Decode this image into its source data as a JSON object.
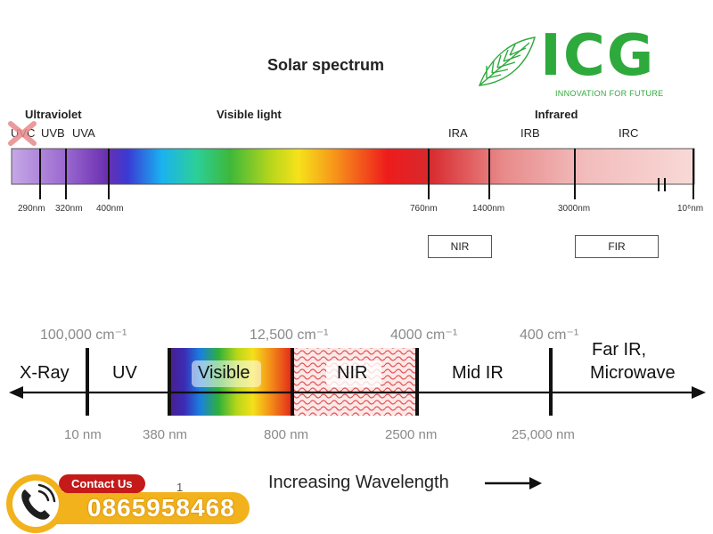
{
  "logo": {
    "name": "ICG",
    "tagline": "INNOVATION FOR FUTURE",
    "color": "#2eaa3c"
  },
  "top_diagram": {
    "title": "Solar spectrum",
    "bands": [
      "Ultraviolet",
      "Visible light",
      "Infrared"
    ],
    "sub_bands": [
      "UVC",
      "UVB",
      "UVA",
      "IRA",
      "IRB",
      "IRC"
    ],
    "ticks": [
      "290nm",
      "320nm",
      "400nm",
      "760nm",
      "1400nm",
      "3000nm",
      "10⁶nm"
    ],
    "labels": [
      "NIR",
      "FIR"
    ]
  },
  "bottom_diagram": {
    "wavenumbers": [
      "100,000 cm⁻¹",
      "12,500 cm⁻¹",
      "4000 cm⁻¹",
      "400 cm⁻¹"
    ],
    "regions": [
      "X-Ray",
      "UV",
      "Visible",
      "NIR",
      "Mid IR",
      "Far IR,",
      "Microwave"
    ],
    "wavelengths": [
      "10 nm",
      "380 nm",
      "800 nm",
      "2500 nm",
      "25,000 nm"
    ],
    "axis_label": "Increasing Wavelength",
    "page_mark": "1"
  },
  "contact": {
    "label": "Contact Us",
    "phone": "0865958468",
    "accent": "#f2b21b",
    "badge": "#c41a1a"
  }
}
